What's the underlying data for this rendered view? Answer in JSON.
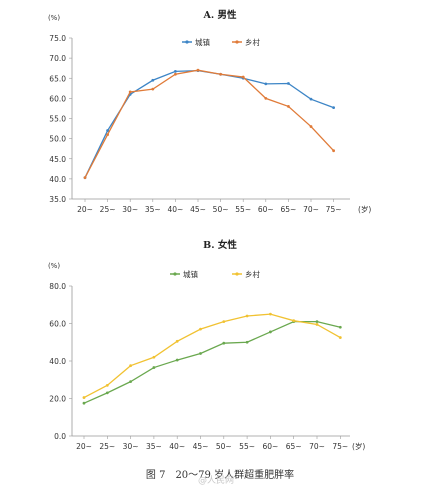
{
  "caption": "图 7　20～79 岁人群超重肥胖率",
  "watermark": "@人民网",
  "chart_data": [
    {
      "type": "line",
      "title": "A. 男性",
      "ylabel": "(%)",
      "xlabel": "(岁)",
      "categories": [
        "20~",
        "25~",
        "30~",
        "35~",
        "40~",
        "45~",
        "50~",
        "55~",
        "60~",
        "65~",
        "70~",
        "75~"
      ],
      "ylim": [
        35.0,
        75.0
      ],
      "yticks": [
        "35.0",
        "40.0",
        "45.0",
        "50.0",
        "55.0",
        "60.0",
        "65.0",
        "70.0",
        "75.0"
      ],
      "grid": false,
      "legend": "top-center",
      "series": [
        {
          "name": "城镇",
          "color": "#3d85c6",
          "values": [
            40.3,
            52.0,
            61.0,
            64.5,
            66.7,
            66.9,
            66.0,
            65.0,
            63.6,
            63.7,
            59.8,
            57.7
          ]
        },
        {
          "name": "乡村",
          "color": "#e07b39",
          "values": [
            40.3,
            51.0,
            61.6,
            62.3,
            66.0,
            67.0,
            66.0,
            65.3,
            60.0,
            58.0,
            53.0,
            47.0
          ]
        }
      ]
    },
    {
      "type": "line",
      "title": "B. 女性",
      "ylabel": "(%)",
      "xlabel": "(岁)",
      "categories": [
        "20~",
        "25~",
        "30~",
        "35~",
        "40~",
        "45~",
        "50~",
        "55~",
        "60~",
        "65~",
        "70~",
        "75~"
      ],
      "ylim": [
        0.0,
        80.0
      ],
      "yticks": [
        "0.0",
        "20.0",
        "40.0",
        "60.0",
        "80.0"
      ],
      "grid": false,
      "legend": "top-center",
      "series": [
        {
          "name": "城镇",
          "color": "#6aa84f",
          "values": [
            17.5,
            23.0,
            29.0,
            36.5,
            40.5,
            44.0,
            49.5,
            50.0,
            55.5,
            61.0,
            61.0,
            58.0
          ]
        },
        {
          "name": "乡村",
          "color": "#f1c232",
          "values": [
            20.5,
            27.0,
            37.5,
            42.0,
            50.5,
            57.0,
            61.0,
            64.0,
            65.0,
            61.5,
            59.5,
            52.5
          ]
        }
      ]
    }
  ]
}
